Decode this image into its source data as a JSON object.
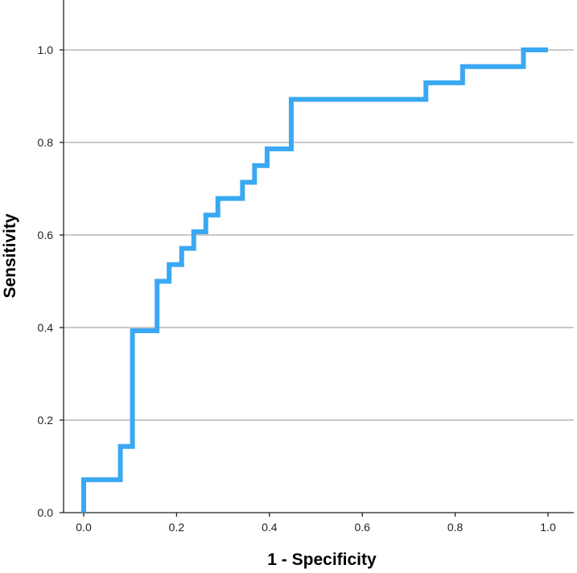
{
  "chart_data": {
    "type": "line",
    "title": "",
    "xlabel": "1 - Specificity",
    "ylabel": "Sensitivity",
    "xlim": [
      0.0,
      1.0
    ],
    "ylim": [
      0.0,
      1.0
    ],
    "x_ticks": [
      "0.0",
      "0.2",
      "0.4",
      "0.6",
      "0.8",
      "1.0"
    ],
    "y_ticks": [
      "0.0",
      "0.2",
      "0.4",
      "0.6",
      "0.8",
      "1.0"
    ],
    "grid": "horizontal",
    "legend": "none",
    "series": [
      {
        "color": "#3aa8f2",
        "step": true,
        "points": [
          [
            0.0,
            0.0
          ],
          [
            0.0,
            0.071
          ],
          [
            0.079,
            0.071
          ],
          [
            0.079,
            0.143
          ],
          [
            0.105,
            0.143
          ],
          [
            0.105,
            0.393
          ],
          [
            0.158,
            0.393
          ],
          [
            0.158,
            0.5
          ],
          [
            0.184,
            0.5
          ],
          [
            0.184,
            0.536
          ],
          [
            0.211,
            0.536
          ],
          [
            0.211,
            0.571
          ],
          [
            0.237,
            0.571
          ],
          [
            0.237,
            0.607
          ],
          [
            0.263,
            0.607
          ],
          [
            0.263,
            0.643
          ],
          [
            0.289,
            0.643
          ],
          [
            0.289,
            0.679
          ],
          [
            0.342,
            0.679
          ],
          [
            0.342,
            0.714
          ],
          [
            0.368,
            0.714
          ],
          [
            0.368,
            0.75
          ],
          [
            0.395,
            0.75
          ],
          [
            0.395,
            0.786
          ],
          [
            0.447,
            0.786
          ],
          [
            0.447,
            0.893
          ],
          [
            0.737,
            0.893
          ],
          [
            0.737,
            0.929
          ],
          [
            0.816,
            0.929
          ],
          [
            0.816,
            0.964
          ],
          [
            0.947,
            0.964
          ],
          [
            0.947,
            1.0
          ],
          [
            1.0,
            1.0
          ]
        ]
      }
    ]
  }
}
